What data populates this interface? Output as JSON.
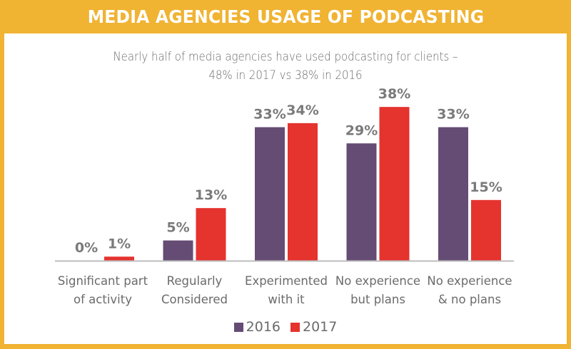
{
  "header": {
    "title": "MEDIA AGENCIES USAGE OF PODCASTING"
  },
  "colors": {
    "frame": "#f0b332",
    "series_2016": "#654c74",
    "series_2017": "#e5332e",
    "label_text": "#7a7a7a",
    "axis": "#bdbdbd"
  },
  "chart_data": {
    "type": "bar",
    "title": "MEDIA AGENCIES USAGE OF PODCASTING",
    "subtitle": [
      "Nearly half of media agencies have used podcasting for clients –",
      "48%  in 2017 vs 38% in 2016"
    ],
    "categories": [
      [
        "Significant part",
        "of activity"
      ],
      [
        "Regularly",
        "Considered"
      ],
      [
        "Experimented",
        "with it"
      ],
      [
        "No experience",
        "but plans"
      ],
      [
        "No experience",
        "& no plans"
      ]
    ],
    "series": [
      {
        "name": "2016",
        "values": [
          0,
          5,
          33,
          29,
          33
        ],
        "labels": [
          "0%",
          "5%",
          "33%",
          "29%",
          "33%"
        ]
      },
      {
        "name": "2017",
        "values": [
          1,
          13,
          34,
          38,
          15
        ],
        "labels": [
          "1%",
          "13%",
          "34%",
          "38%",
          "15%"
        ]
      }
    ],
    "xlabel": "",
    "ylabel": "",
    "ylim": [
      0,
      40
    ],
    "grid": false,
    "legend": "bottom-center",
    "unit": "%"
  }
}
